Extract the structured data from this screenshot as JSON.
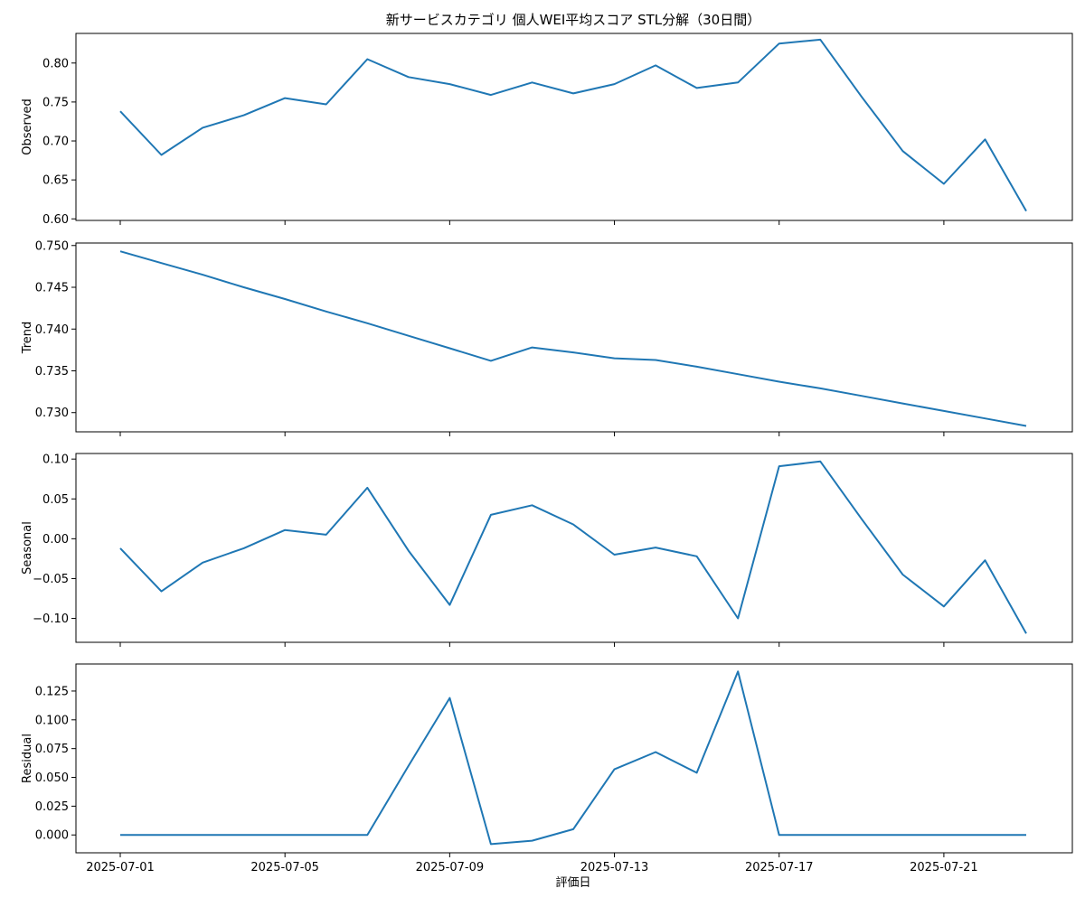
{
  "chart_data": {
    "type": "line",
    "title": "新サービスカテゴリ 個人WEI平均スコア STL分解（30日間）",
    "xlabel": "評価日",
    "x": [
      "2025-07-01",
      "2025-07-02",
      "2025-07-03",
      "2025-07-04",
      "2025-07-05",
      "2025-07-06",
      "2025-07-07",
      "2025-07-08",
      "2025-07-09",
      "2025-07-10",
      "2025-07-11",
      "2025-07-12",
      "2025-07-13",
      "2025-07-14",
      "2025-07-15",
      "2025-07-16",
      "2025-07-17",
      "2025-07-18",
      "2025-07-19",
      "2025-07-20",
      "2025-07-21",
      "2025-07-22",
      "2025-07-23"
    ],
    "x_ticks": [
      "2025-07-01",
      "2025-07-05",
      "2025-07-09",
      "2025-07-13",
      "2025-07-17",
      "2025-07-21"
    ],
    "line_color": "#1f77b4",
    "panels": [
      {
        "ylabel": "Observed",
        "ylim": [
          0.598,
          0.838
        ],
        "yticks": [
          "0.60",
          "0.65",
          "0.70",
          "0.75",
          "0.80"
        ],
        "values": [
          0.738,
          0.682,
          0.717,
          0.733,
          0.755,
          0.747,
          0.805,
          0.782,
          0.773,
          0.759,
          0.775,
          0.761,
          0.773,
          0.797,
          0.768,
          0.775,
          0.825,
          0.83,
          0.757,
          0.687,
          0.645,
          0.702,
          0.61
        ]
      },
      {
        "ylabel": "Trend",
        "ylim": [
          0.7277,
          0.7503
        ],
        "yticks": [
          "0.730",
          "0.735",
          "0.740",
          "0.745",
          "0.750"
        ],
        "values": [
          0.7493,
          0.7479,
          0.7465,
          0.745,
          0.7436,
          0.7421,
          0.7407,
          0.7392,
          0.7377,
          0.7362,
          0.7378,
          0.7372,
          0.7365,
          0.7363,
          0.7355,
          0.7346,
          0.7337,
          0.7329,
          0.732,
          0.7311,
          0.7302,
          0.7293,
          0.7284
        ]
      },
      {
        "ylabel": "Seasonal",
        "ylim": [
          -0.13,
          0.107
        ],
        "yticks": [
          "−0.10",
          "−0.05",
          "0.00",
          "0.05",
          "0.10"
        ],
        "values": [
          -0.012,
          -0.066,
          -0.03,
          -0.012,
          0.011,
          0.005,
          0.064,
          -0.015,
          -0.083,
          0.03,
          0.042,
          0.018,
          -0.02,
          -0.011,
          -0.022,
          -0.1,
          0.091,
          0.097,
          0.025,
          -0.045,
          -0.085,
          -0.027,
          -0.119
        ]
      },
      {
        "ylabel": "Residual",
        "ylim": [
          -0.0155,
          0.1485
        ],
        "yticks": [
          "0.000",
          "0.025",
          "0.050",
          "0.075",
          "0.100",
          "0.125"
        ],
        "values": [
          0.0,
          0.0,
          0.0,
          0.0,
          0.0,
          0.0,
          0.0,
          0.06,
          0.119,
          -0.008,
          -0.005,
          0.005,
          0.057,
          0.072,
          0.054,
          0.142,
          0.0,
          0.0,
          0.0,
          0.0,
          0.0,
          0.0,
          0.0
        ]
      }
    ]
  }
}
